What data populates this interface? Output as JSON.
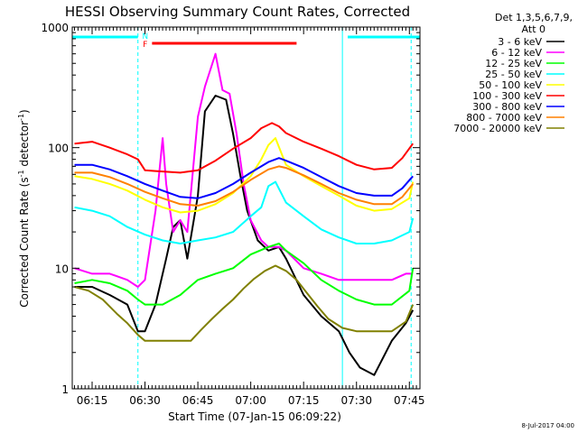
{
  "chart_data": {
    "type": "line",
    "title": "HESSI Observing Summary Count Rates, Corrected",
    "xlabel": "Start Time (07-Jan-15 06:09:22)",
    "ylabel_parts": [
      "Corrected Count Rate (s",
      "-1",
      " detector",
      "-1",
      ")"
    ],
    "y_scale": "log",
    "ylim": [
      1,
      1000
    ],
    "xlim": [
      "06:09:22",
      "07:48:00"
    ],
    "x_ticks": [
      "06:15",
      "06:30",
      "06:45",
      "07:00",
      "07:15",
      "07:30",
      "07:45"
    ],
    "y_ticks": [
      "1",
      "10",
      "100",
      "1000"
    ],
    "legend_position": "right",
    "legend_header": [
      "Det 1,3,5,6,7,9,",
      "Att 0"
    ],
    "timestamp": "8-Jul-2017 04:00",
    "markers": {
      "night_label": "N",
      "flag_label": "F",
      "night_color": "#00ffff",
      "flag_color": "#ff0000",
      "night_bars": [
        [
          "06:09:22",
          "06:28:00"
        ],
        [
          "07:27:30",
          "07:48:00"
        ]
      ],
      "flag_bar": [
        "06:32:00",
        "07:13:00"
      ],
      "dashed_lines": [
        "06:28:00",
        "07:45:30"
      ],
      "solid_lines": [
        "07:26:00"
      ]
    },
    "series": [
      {
        "name": "3 - 6 keV",
        "color": "#000000",
        "x": [
          "06:10",
          "06:15",
          "06:20",
          "06:25",
          "06:28",
          "06:30",
          "06:33",
          "06:36",
          "06:38",
          "06:40",
          "06:42",
          "06:45",
          "06:47",
          "06:50",
          "06:53",
          "06:55",
          "06:57",
          "06:59",
          "07:02",
          "07:05",
          "07:08",
          "07:10",
          "07:15",
          "07:20",
          "07:25",
          "07:28",
          "07:31",
          "07:35",
          "07:40",
          "07:44",
          "07:46"
        ],
        "y": [
          7,
          7,
          6,
          5,
          3,
          3,
          5,
          12,
          22,
          25,
          12,
          40,
          200,
          270,
          250,
          130,
          60,
          30,
          17,
          14,
          15,
          12,
          6,
          4,
          3,
          2,
          1.5,
          1.3,
          2.5,
          3.5,
          4.5
        ]
      },
      {
        "name": "6 - 12 keV",
        "color": "#ff00ff",
        "x": [
          "06:10",
          "06:15",
          "06:20",
          "06:25",
          "06:28",
          "06:30",
          "06:33",
          "06:35",
          "06:36",
          "06:38",
          "06:40",
          "06:42",
          "06:45",
          "06:47",
          "06:50",
          "06:52",
          "06:54",
          "06:56",
          "06:58",
          "07:00",
          "07:03",
          "07:05",
          "07:08",
          "07:10",
          "07:15",
          "07:20",
          "07:25",
          "07:30",
          "07:35",
          "07:40",
          "07:44",
          "07:46"
        ],
        "y": [
          10,
          9,
          9,
          8,
          7,
          8,
          30,
          120,
          50,
          20,
          25,
          20,
          180,
          320,
          600,
          300,
          280,
          130,
          50,
          25,
          17,
          15,
          15,
          14,
          10,
          9,
          8,
          8,
          8,
          8,
          9,
          9
        ]
      },
      {
        "name": "12 - 25 keV",
        "color": "#00ff00",
        "x": [
          "06:10",
          "06:15",
          "06:20",
          "06:25",
          "06:28",
          "06:30",
          "06:35",
          "06:40",
          "06:45",
          "06:50",
          "06:55",
          "07:00",
          "07:05",
          "07:08",
          "07:10",
          "07:15",
          "07:20",
          "07:25",
          "07:30",
          "07:35",
          "07:40",
          "07:45",
          "07:46"
        ],
        "y": [
          7.5,
          8,
          7.5,
          6.5,
          5.5,
          5,
          5,
          6,
          8,
          9,
          10,
          13,
          15,
          16,
          14,
          11,
          8,
          6.5,
          5.5,
          5,
          5,
          6.5,
          10
        ]
      },
      {
        "name": "25 - 50 keV",
        "color": "#00ffff",
        "x": [
          "06:10",
          "06:15",
          "06:20",
          "06:25",
          "06:30",
          "06:35",
          "06:40",
          "06:45",
          "06:50",
          "06:55",
          "07:00",
          "07:03",
          "07:05",
          "07:07",
          "07:10",
          "07:15",
          "07:20",
          "07:25",
          "07:30",
          "07:35",
          "07:40",
          "07:45",
          "07:46"
        ],
        "y": [
          32,
          30,
          27,
          22,
          19,
          17,
          16,
          17,
          18,
          20,
          27,
          32,
          48,
          52,
          35,
          27,
          21,
          18,
          16,
          16,
          17,
          20,
          26
        ]
      },
      {
        "name": "50 - 100 keV",
        "color": "#ffff00",
        "x": [
          "06:10",
          "06:15",
          "06:20",
          "06:25",
          "06:30",
          "06:35",
          "06:40",
          "06:45",
          "06:50",
          "06:55",
          "07:00",
          "07:03",
          "07:05",
          "07:07",
          "07:10",
          "07:15",
          "07:20",
          "07:25",
          "07:30",
          "07:35",
          "07:40",
          "07:45",
          "07:46"
        ],
        "y": [
          58,
          55,
          50,
          44,
          37,
          32,
          29,
          30,
          34,
          42,
          58,
          80,
          105,
          120,
          72,
          58,
          48,
          40,
          33,
          30,
          31,
          38,
          52
        ]
      },
      {
        "name": "100 - 300 keV",
        "color": "#ff0000",
        "x": [
          "06:10",
          "06:15",
          "06:20",
          "06:25",
          "06:28",
          "06:30",
          "06:33",
          "06:40",
          "06:45",
          "06:50",
          "06:55",
          "07:00",
          "07:03",
          "07:06",
          "07:08",
          "07:10",
          "07:15",
          "07:20",
          "07:25",
          "07:30",
          "07:35",
          "07:40",
          "07:43",
          "07:46"
        ],
        "y": [
          108,
          112,
          100,
          88,
          80,
          65,
          64,
          62,
          65,
          78,
          98,
          120,
          145,
          160,
          150,
          132,
          112,
          98,
          85,
          72,
          66,
          68,
          82,
          108
        ]
      },
      {
        "name": "300 - 800 keV",
        "color": "#0000ff",
        "x": [
          "06:10",
          "06:15",
          "06:20",
          "06:25",
          "06:30",
          "06:35",
          "06:40",
          "06:45",
          "06:50",
          "06:55",
          "07:00",
          "07:05",
          "07:08",
          "07:10",
          "07:15",
          "07:20",
          "07:25",
          "07:30",
          "07:35",
          "07:40",
          "07:43",
          "07:46"
        ],
        "y": [
          72,
          72,
          66,
          58,
          50,
          44,
          39,
          38,
          42,
          50,
          62,
          76,
          82,
          78,
          68,
          57,
          48,
          42,
          40,
          40,
          46,
          58
        ]
      },
      {
        "name": "800 - 7000 keV",
        "color": "#ff8000",
        "x": [
          "06:10",
          "06:15",
          "06:20",
          "06:25",
          "06:30",
          "06:35",
          "06:40",
          "06:45",
          "06:50",
          "06:55",
          "07:00",
          "07:05",
          "07:08",
          "07:10",
          "07:15",
          "07:20",
          "07:25",
          "07:30",
          "07:35",
          "07:40",
          "07:43",
          "07:46"
        ],
        "y": [
          62,
          62,
          57,
          50,
          43,
          38,
          34,
          33,
          36,
          43,
          54,
          66,
          70,
          68,
          59,
          50,
          42,
          37,
          34,
          34,
          39,
          50
        ]
      },
      {
        "name": "7000 - 20000 keV",
        "color": "#808000",
        "x": [
          "06:10",
          "06:14",
          "06:18",
          "06:22",
          "06:25",
          "06:28",
          "06:30",
          "06:33",
          "06:36",
          "06:40",
          "06:43",
          "06:46",
          "06:49",
          "06:52",
          "06:55",
          "06:58",
          "07:01",
          "07:04",
          "07:07",
          "07:10",
          "07:13",
          "07:16",
          "07:19",
          "07:22",
          "07:26",
          "07:30",
          "07:35",
          "07:40",
          "07:44",
          "07:46"
        ],
        "y": [
          7,
          6.5,
          5.5,
          4.2,
          3.5,
          2.8,
          2.5,
          2.5,
          2.5,
          2.5,
          2.5,
          3.1,
          3.8,
          4.6,
          5.5,
          6.8,
          8.2,
          9.5,
          10.5,
          9.5,
          8,
          6.2,
          4.8,
          3.8,
          3.2,
          3,
          3,
          3,
          3.6,
          5
        ]
      }
    ]
  }
}
